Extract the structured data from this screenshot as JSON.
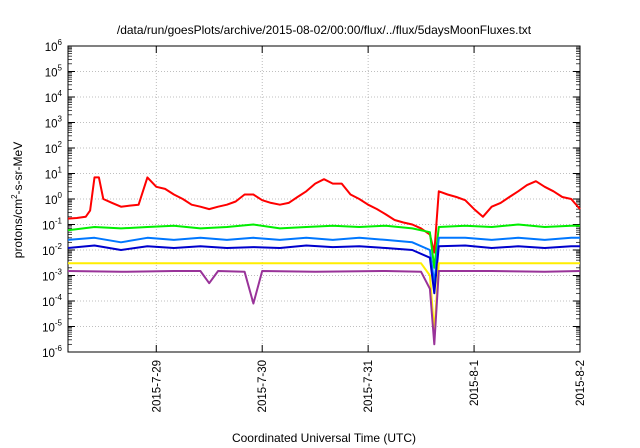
{
  "chart_data": {
    "type": "line",
    "title": "/data/run/goesPlots/archive/2015-08-02/00:00/flux/../flux/5daysMoonFluxes.txt",
    "xlabel": "Coordinated Universal Time (UTC)",
    "ylabel_parts": [
      "protons/cm",
      "2",
      "-s-sr-MeV"
    ],
    "y_scale": "log",
    "ylim": [
      1e-06,
      1000000.0
    ],
    "y_ticks": [
      {
        "base": "10",
        "exp": "6"
      },
      {
        "base": "10",
        "exp": "5"
      },
      {
        "base": "10",
        "exp": "4"
      },
      {
        "base": "10",
        "exp": "3"
      },
      {
        "base": "10",
        "exp": "2"
      },
      {
        "base": "10",
        "exp": "1"
      },
      {
        "base": "10",
        "exp": "0"
      },
      {
        "base": "10",
        "exp": "-1"
      },
      {
        "base": "10",
        "exp": "-2"
      },
      {
        "base": "10",
        "exp": "-3"
      },
      {
        "base": "10",
        "exp": "-4"
      },
      {
        "base": "10",
        "exp": "-5"
      },
      {
        "base": "10",
        "exp": "-6"
      }
    ],
    "xlim": [
      "2015-07-28T04:00",
      "2015-08-02T00:00"
    ],
    "x_ticks": [
      {
        "label": "2015-7-29",
        "at": "2015-07-29T00:00"
      },
      {
        "label": "2015-7-30",
        "at": "2015-07-30T00:00"
      },
      {
        "label": "2015-7-31",
        "at": "2015-07-31T00:00"
      },
      {
        "label": "2015-8-1",
        "at": "2015-08-01T00:00"
      },
      {
        "label": "2015-8-2",
        "at": "2015-08-02T00:00"
      }
    ],
    "grid": true,
    "series": [
      {
        "color": "#ff0000",
        "width": 2,
        "points": [
          [
            "2015-07-28T04:00",
            0.17
          ],
          [
            "2015-07-28T06:00",
            0.18
          ],
          [
            "2015-07-28T08:00",
            0.2
          ],
          [
            "2015-07-28T09:00",
            0.35
          ],
          [
            "2015-07-28T10:00",
            7
          ],
          [
            "2015-07-28T11:00",
            7
          ],
          [
            "2015-07-28T12:00",
            1.0
          ],
          [
            "2015-07-28T14:00",
            0.7
          ],
          [
            "2015-07-28T16:00",
            0.5
          ],
          [
            "2015-07-28T18:00",
            0.55
          ],
          [
            "2015-07-28T20:00",
            0.6
          ],
          [
            "2015-07-28T22:00",
            7
          ],
          [
            "2015-07-29T00:00",
            3
          ],
          [
            "2015-07-29T02:00",
            2.5
          ],
          [
            "2015-07-29T04:00",
            1.5
          ],
          [
            "2015-07-29T06:00",
            1.0
          ],
          [
            "2015-07-29T08:00",
            0.6
          ],
          [
            "2015-07-29T10:00",
            0.5
          ],
          [
            "2015-07-29T12:00",
            0.4
          ],
          [
            "2015-07-29T14:00",
            0.5
          ],
          [
            "2015-07-29T16:00",
            0.6
          ],
          [
            "2015-07-29T18:00",
            0.8
          ],
          [
            "2015-07-29T20:00",
            1.5
          ],
          [
            "2015-07-29T22:00",
            1.5
          ],
          [
            "2015-07-30T00:00",
            0.9
          ],
          [
            "2015-07-30T02:00",
            0.7
          ],
          [
            "2015-07-30T04:00",
            0.6
          ],
          [
            "2015-07-30T06:00",
            0.7
          ],
          [
            "2015-07-30T08:00",
            1.2
          ],
          [
            "2015-07-30T10:00",
            2
          ],
          [
            "2015-07-30T12:00",
            4
          ],
          [
            "2015-07-30T14:00",
            6
          ],
          [
            "2015-07-30T16:00",
            4
          ],
          [
            "2015-07-30T18:00",
            4
          ],
          [
            "2015-07-30T20:00",
            1.5
          ],
          [
            "2015-07-30T22:00",
            1.0
          ],
          [
            "2015-07-31T00:00",
            0.6
          ],
          [
            "2015-07-31T02:00",
            0.4
          ],
          [
            "2015-07-31T04:00",
            0.25
          ],
          [
            "2015-07-31T06:00",
            0.15
          ],
          [
            "2015-07-31T08:00",
            0.12
          ],
          [
            "2015-07-31T10:00",
            0.1
          ],
          [
            "2015-07-31T12:00",
            0.07
          ],
          [
            "2015-07-31T14:00",
            0.04
          ],
          [
            "2015-07-31T15:00",
            0.008
          ],
          [
            "2015-07-31T16:00",
            2
          ],
          [
            "2015-07-31T18:00",
            1.5
          ],
          [
            "2015-07-31T20:00",
            1.2
          ],
          [
            "2015-07-31T22:00",
            0.9
          ],
          [
            "2015-08-01T00:00",
            0.4
          ],
          [
            "2015-08-01T02:00",
            0.2
          ],
          [
            "2015-08-01T04:00",
            0.5
          ],
          [
            "2015-08-01T06:00",
            0.7
          ],
          [
            "2015-08-01T08:00",
            1.2
          ],
          [
            "2015-08-01T10:00",
            2
          ],
          [
            "2015-08-01T12:00",
            3.5
          ],
          [
            "2015-08-01T14:00",
            5
          ],
          [
            "2015-08-01T16:00",
            3
          ],
          [
            "2015-08-01T18:00",
            2
          ],
          [
            "2015-08-01T20:00",
            1.2
          ],
          [
            "2015-08-01T22:00",
            1.0
          ],
          [
            "2015-08-02T00:00",
            0.4
          ]
        ]
      },
      {
        "color": "#00ee00",
        "width": 2,
        "points": [
          [
            "2015-07-28T04:00",
            0.06
          ],
          [
            "2015-07-28T10:00",
            0.08
          ],
          [
            "2015-07-28T16:00",
            0.07
          ],
          [
            "2015-07-28T22:00",
            0.08
          ],
          [
            "2015-07-29T04:00",
            0.09
          ],
          [
            "2015-07-29T10:00",
            0.07
          ],
          [
            "2015-07-29T16:00",
            0.08
          ],
          [
            "2015-07-29T22:00",
            0.1
          ],
          [
            "2015-07-30T04:00",
            0.07
          ],
          [
            "2015-07-30T10:00",
            0.08
          ],
          [
            "2015-07-30T16:00",
            0.09
          ],
          [
            "2015-07-30T22:00",
            0.08
          ],
          [
            "2015-07-31T04:00",
            0.09
          ],
          [
            "2015-07-31T10:00",
            0.07
          ],
          [
            "2015-07-31T14:00",
            0.05
          ],
          [
            "2015-07-31T15:00",
            0.002
          ],
          [
            "2015-07-31T16:00",
            0.08
          ],
          [
            "2015-07-31T22:00",
            0.09
          ],
          [
            "2015-08-01T04:00",
            0.08
          ],
          [
            "2015-08-01T10:00",
            0.1
          ],
          [
            "2015-08-01T16:00",
            0.08
          ],
          [
            "2015-08-01T22:00",
            0.09
          ],
          [
            "2015-08-02T00:00",
            0.09
          ]
        ]
      },
      {
        "color": "#0077ff",
        "width": 2,
        "points": [
          [
            "2015-07-28T04:00",
            0.025
          ],
          [
            "2015-07-28T10:00",
            0.03
          ],
          [
            "2015-07-28T16:00",
            0.02
          ],
          [
            "2015-07-28T22:00",
            0.03
          ],
          [
            "2015-07-29T04:00",
            0.025
          ],
          [
            "2015-07-29T10:00",
            0.03
          ],
          [
            "2015-07-29T16:00",
            0.025
          ],
          [
            "2015-07-29T22:00",
            0.03
          ],
          [
            "2015-07-30T04:00",
            0.025
          ],
          [
            "2015-07-30T10:00",
            0.03
          ],
          [
            "2015-07-30T16:00",
            0.025
          ],
          [
            "2015-07-30T22:00",
            0.03
          ],
          [
            "2015-07-31T04:00",
            0.025
          ],
          [
            "2015-07-31T10:00",
            0.02
          ],
          [
            "2015-07-31T14:00",
            0.01
          ],
          [
            "2015-07-31T15:00",
            0.0005
          ],
          [
            "2015-07-31T16:00",
            0.03
          ],
          [
            "2015-07-31T22:00",
            0.03
          ],
          [
            "2015-08-01T04:00",
            0.025
          ],
          [
            "2015-08-01T10:00",
            0.03
          ],
          [
            "2015-08-01T16:00",
            0.025
          ],
          [
            "2015-08-01T22:00",
            0.03
          ],
          [
            "2015-08-02T00:00",
            0.03
          ]
        ]
      },
      {
        "color": "#0000cc",
        "width": 2,
        "points": [
          [
            "2015-07-28T04:00",
            0.012
          ],
          [
            "2015-07-28T10:00",
            0.015
          ],
          [
            "2015-07-28T16:00",
            0.01
          ],
          [
            "2015-07-28T22:00",
            0.014
          ],
          [
            "2015-07-29T04:00",
            0.012
          ],
          [
            "2015-07-29T10:00",
            0.014
          ],
          [
            "2015-07-29T16:00",
            0.012
          ],
          [
            "2015-07-29T22:00",
            0.013
          ],
          [
            "2015-07-30T04:00",
            0.012
          ],
          [
            "2015-07-30T10:00",
            0.015
          ],
          [
            "2015-07-30T16:00",
            0.013
          ],
          [
            "2015-07-30T22:00",
            0.014
          ],
          [
            "2015-07-31T04:00",
            0.012
          ],
          [
            "2015-07-31T10:00",
            0.01
          ],
          [
            "2015-07-31T14:00",
            0.005
          ],
          [
            "2015-07-31T15:00",
            0.0002
          ],
          [
            "2015-07-31T16:00",
            0.014
          ],
          [
            "2015-07-31T22:00",
            0.015
          ],
          [
            "2015-08-01T04:00",
            0.012
          ],
          [
            "2015-08-01T10:00",
            0.014
          ],
          [
            "2015-08-01T16:00",
            0.012
          ],
          [
            "2015-08-01T22:00",
            0.014
          ],
          [
            "2015-08-02T00:00",
            0.014
          ]
        ]
      },
      {
        "color": "#ffee00",
        "width": 2,
        "points": [
          [
            "2015-07-28T04:00",
            0.003
          ],
          [
            "2015-07-28T16:00",
            0.003
          ],
          [
            "2015-07-29T04:00",
            0.003
          ],
          [
            "2015-07-29T16:00",
            0.003
          ],
          [
            "2015-07-30T04:00",
            0.003
          ],
          [
            "2015-07-30T16:00",
            0.003
          ],
          [
            "2015-07-31T04:00",
            0.003
          ],
          [
            "2015-07-31T12:00",
            0.003
          ],
          [
            "2015-07-31T14:00",
            0.001
          ],
          [
            "2015-07-31T15:00",
            6e-06
          ],
          [
            "2015-07-31T16:00",
            0.003
          ],
          [
            "2015-08-01T04:00",
            0.003
          ],
          [
            "2015-08-01T16:00",
            0.003
          ],
          [
            "2015-08-02T00:00",
            0.003
          ]
        ]
      },
      {
        "color": "#993399",
        "width": 2,
        "points": [
          [
            "2015-07-28T04:00",
            0.0015
          ],
          [
            "2015-07-28T16:00",
            0.0014
          ],
          [
            "2015-07-29T04:00",
            0.0015
          ],
          [
            "2015-07-29T10:00",
            0.0015
          ],
          [
            "2015-07-29T12:00",
            0.0005
          ],
          [
            "2015-07-29T14:00",
            0.0015
          ],
          [
            "2015-07-29T20:00",
            0.0014
          ],
          [
            "2015-07-29T22:00",
            8e-05
          ],
          [
            "2015-07-30T00:00",
            0.0015
          ],
          [
            "2015-07-30T12:00",
            0.0014
          ],
          [
            "2015-07-31T04:00",
            0.0015
          ],
          [
            "2015-07-31T12:00",
            0.0014
          ],
          [
            "2015-07-31T14:00",
            0.0003
          ],
          [
            "2015-07-31T15:00",
            2e-06
          ],
          [
            "2015-07-31T16:00",
            0.0015
          ],
          [
            "2015-08-01T04:00",
            0.0015
          ],
          [
            "2015-08-01T16:00",
            0.0014
          ],
          [
            "2015-08-02T00:00",
            0.0015
          ]
        ]
      }
    ]
  }
}
